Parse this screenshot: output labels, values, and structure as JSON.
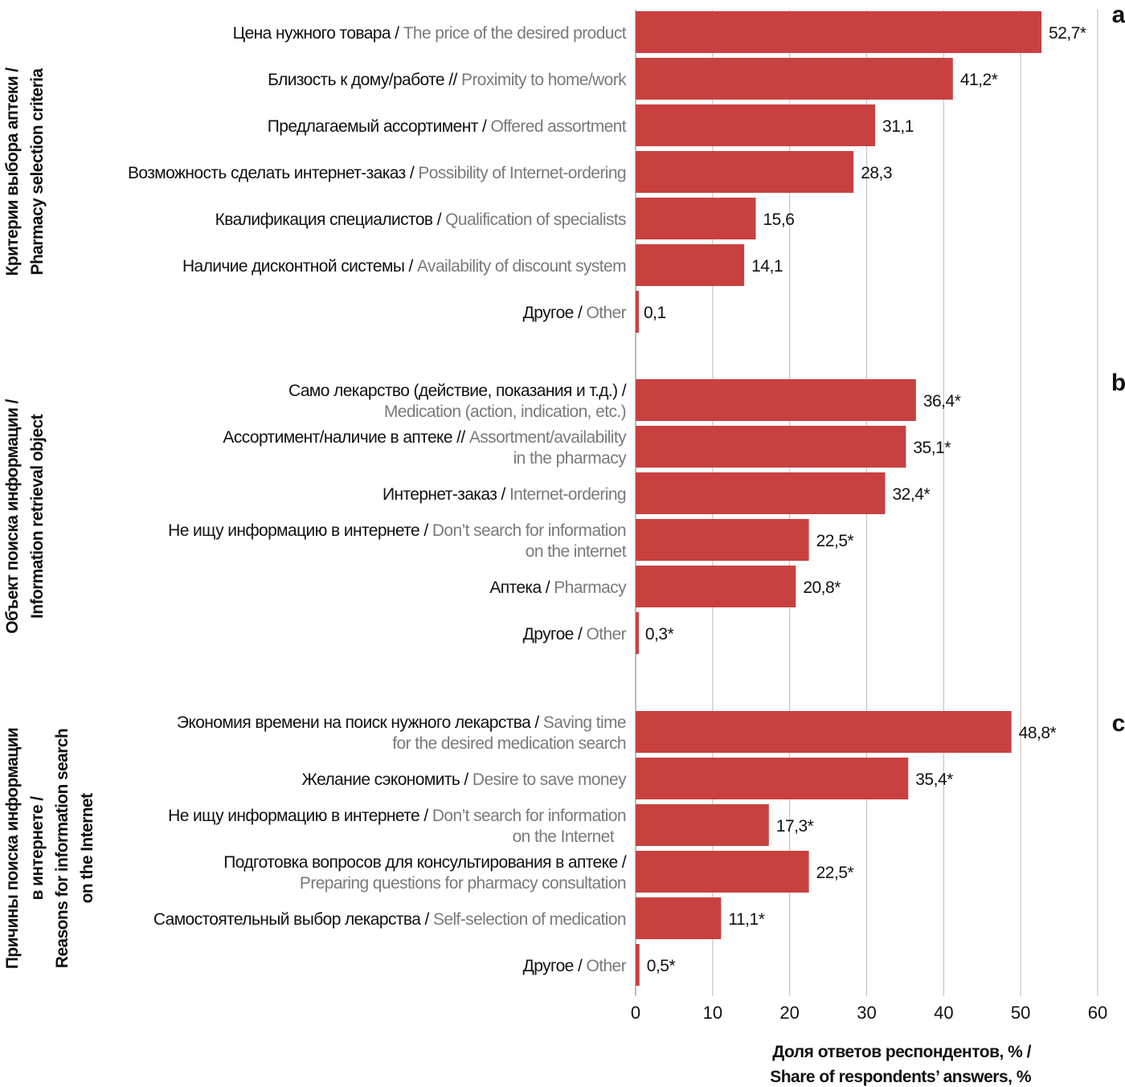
{
  "chart_data": {
    "type": "bar",
    "orientation": "horizontal",
    "xlim": [
      0,
      60
    ],
    "xticks": [
      "0",
      "10",
      "20",
      "30",
      "40",
      "50",
      "60"
    ],
    "xlabel": {
      "ru": "Доля ответов респондентов, % /",
      "en": "Share of respondents’ answers, %"
    },
    "grid": true,
    "bar_color": "#c94040",
    "panels": [
      {
        "letter": "a",
        "title_ru": [
          "Критерии выбора аптеки /"
        ],
        "title_en": [
          "Pharmacy selection criteria"
        ],
        "bars": [
          {
            "ru": "Цена нужного товара / ",
            "en": "The price of the desired product",
            "value": 52.7,
            "label": "52,7*"
          },
          {
            "ru": "Близость к дому/работе // ",
            "en": "Proximity to home/work",
            "value": 41.2,
            "label": "41,2*"
          },
          {
            "ru": "Предлагаемый ассортимент / ",
            "en": "Offered assortment",
            "value": 31.1,
            "label": "31,1"
          },
          {
            "ru": "Возможность сделать интернет-заказ / ",
            "en": "Possibility of Internet-ordering",
            "value": 28.3,
            "label": "28,3"
          },
          {
            "ru": "Квалификация специалистов / ",
            "en": "Qualification of specialists",
            "value": 15.6,
            "label": "15,6"
          },
          {
            "ru": "Наличие дисконтной системы / ",
            "en": "Availability of discount system",
            "value": 14.1,
            "label": "14,1"
          },
          {
            "ru": "Другое / ",
            "en": "Other",
            "value": 0.1,
            "label": "0,1"
          }
        ]
      },
      {
        "letter": "b",
        "title_ru": [
          "Объект поиска информации /"
        ],
        "title_en": [
          "Information retrieval object"
        ],
        "bars": [
          {
            "ru": "Само лекарство (действие, показания и т.д.) /",
            "en": "Medication (action, indication, etc.)",
            "two_line": true,
            "value": 36.4,
            "label": "36,4*"
          },
          {
            "ru": "Ассортимент/наличие в аптеке // ",
            "en": "Assortment/availability",
            "en2": "in the pharmacy",
            "value": 35.1,
            "label": "35,1*"
          },
          {
            "ru": "Интернет-заказ / ",
            "en": "Internet-ordering",
            "value": 32.4,
            "label": "32,4*"
          },
          {
            "ru": "Не ищу информацию в интернете / ",
            "en": "Don’t search for information",
            "en2": "on the internet",
            "value": 22.5,
            "label": "22,5*"
          },
          {
            "ru": "Аптека / ",
            "en": "Pharmacy",
            "value": 20.8,
            "label": "20,8*"
          },
          {
            "ru": "Другое / ",
            "en": "Other",
            "value": 0.3,
            "label": "0,3*"
          }
        ]
      },
      {
        "letter": "c",
        "title_ru": [
          "Причины поиска информации",
          "в интернете /"
        ],
        "title_en": [
          "Reasons for information search",
          "on the Internet"
        ],
        "bars": [
          {
            "ru": "Экономия времени на поиск нужного лекарства / ",
            "en": "Saving time",
            "en2": "for the desired medication search",
            "value": 48.8,
            "label": "48,8*"
          },
          {
            "ru": "Желание сэкономить / ",
            "en": "Desire to save money",
            "value": 35.4,
            "label": "35,4*"
          },
          {
            "ru": "Не ищу информацию в интернете / ",
            "en": "Don’t search for information",
            "en2": "on the Internet",
            "value": 17.3,
            "label": "17,3*"
          },
          {
            "ru": "Подготовка вопросов для консультирования в аптеке /",
            "en": "Preparing questions for pharmacy consultation",
            "two_line": true,
            "value": 22.5,
            "label": "22,5*"
          },
          {
            "ru": "Самостоятельный выбор лекарства / ",
            "en": "Self-selection of medication",
            "value": 11.1,
            "label": "11,1*"
          },
          {
            "ru": "Другое / ",
            "en": "Other",
            "value": 0.5,
            "label": "0,5*"
          }
        ]
      }
    ]
  }
}
